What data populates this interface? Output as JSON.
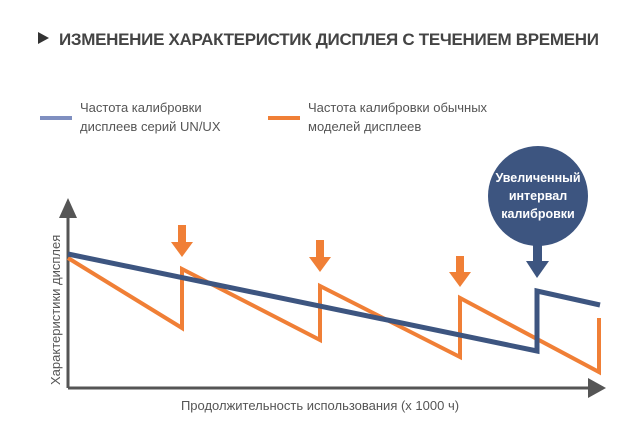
{
  "title": "ИЗМЕНЕНИЕ ХАРАКТЕРИСТИК ДИСПЛЕЯ С ТЕЧЕНИЕМ ВРЕМЕНИ",
  "colors": {
    "blue": "#3d5580",
    "legend_blue": "#7f8fc0",
    "orange": "#f07f36",
    "axis": "#555555"
  },
  "legend": [
    {
      "label_line1": "Частота калибровки",
      "label_line2": "дисплеев серий UN/UX",
      "color": "#3d5580"
    },
    {
      "label_line1": "Частота калибровки обычных",
      "label_line2": "моделей дисплеев",
      "color": "#f07f36"
    }
  ],
  "axes": {
    "ylabel": "Характеристики дисплея",
    "xlabel": "Продолжительность использования (x 1000 ч)"
  },
  "callout": {
    "line1": "Увеличенный",
    "line2": "интервал",
    "line3": "калибровки"
  }
}
